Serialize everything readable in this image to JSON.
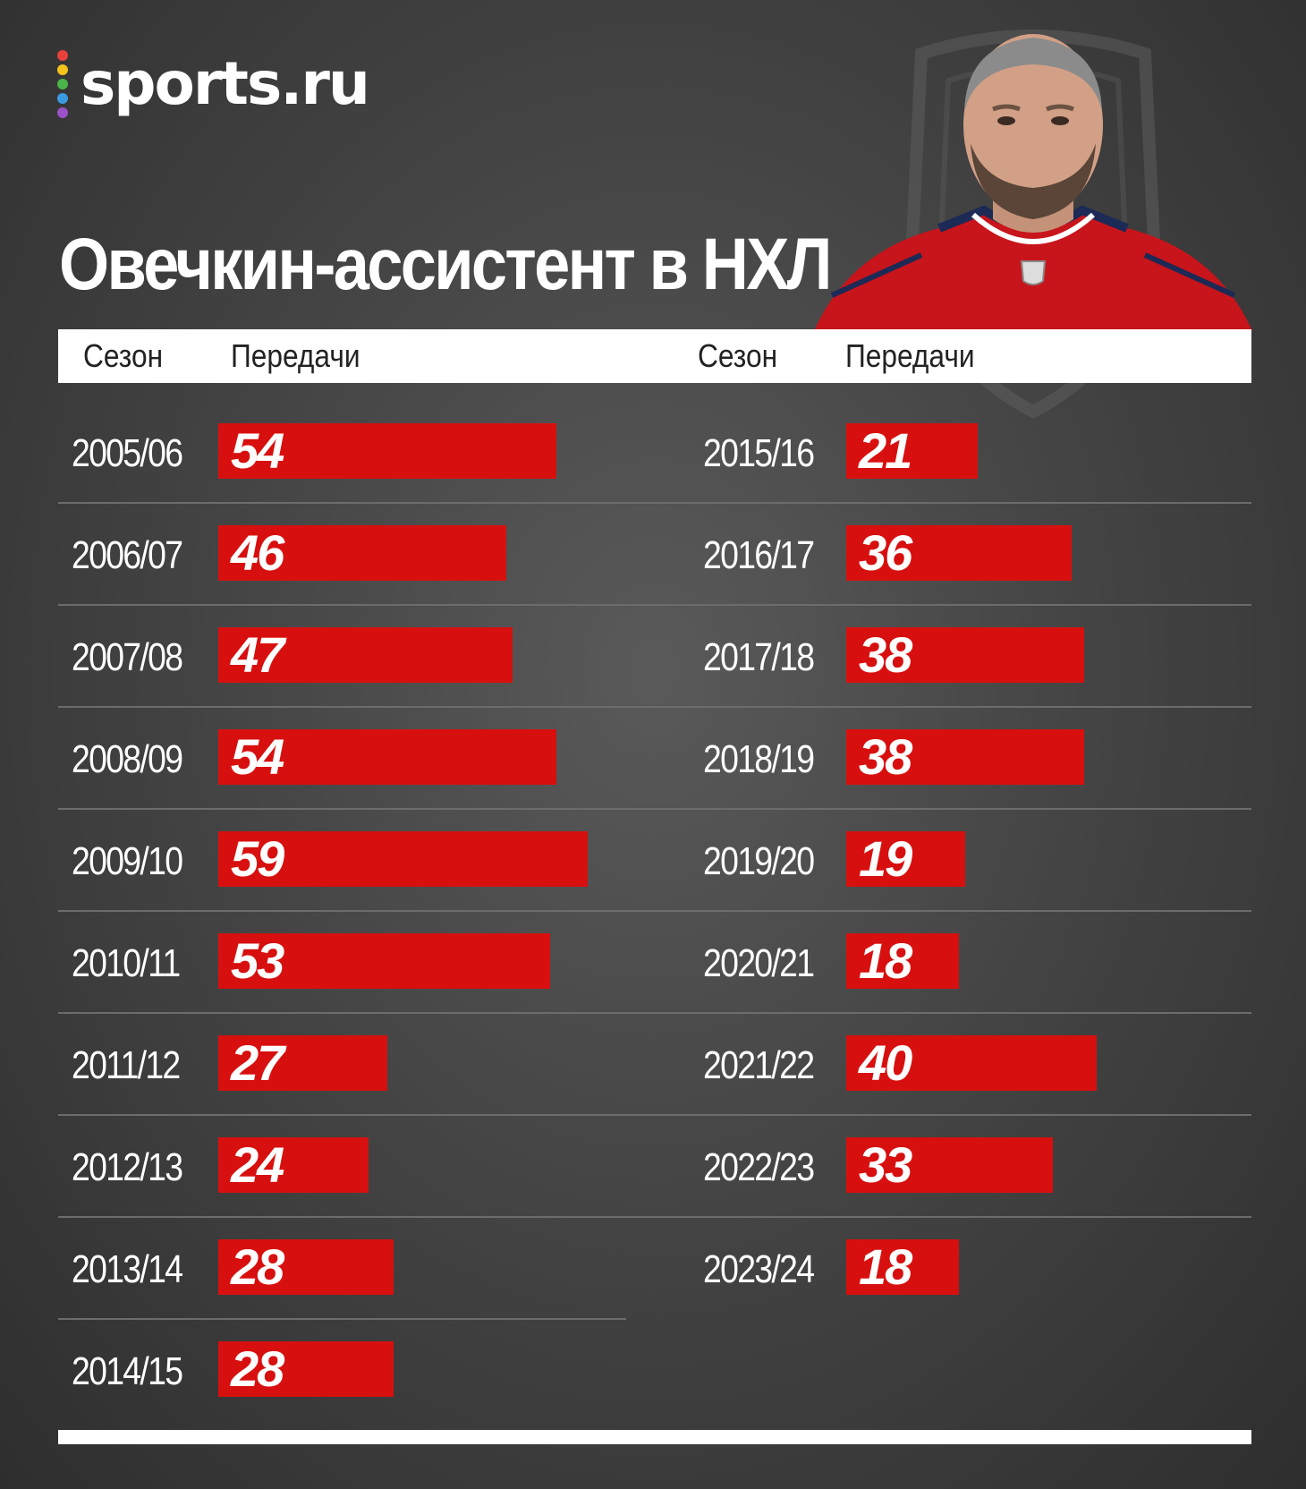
{
  "brand": {
    "name": "sports.ru",
    "dot_colors": [
      "#e8403a",
      "#f3c21b",
      "#4bb54a",
      "#3a9be0",
      "#9b51c8"
    ]
  },
  "title": "Овечкин-ассистент в НХЛ",
  "header": {
    "season_label": "Сезон",
    "assists_label": "Передачи"
  },
  "colors": {
    "bar": "#d7100f",
    "background": "#454545",
    "text": "#ffffff"
  },
  "chart_data": {
    "type": "bar",
    "orientation": "horizontal",
    "title": "Овечкин-ассистент в НХЛ",
    "xlabel": "Передачи",
    "ylabel": "Сезон",
    "columns": [
      {
        "categories": [
          "2005/06",
          "2006/07",
          "2007/08",
          "2008/09",
          "2009/10",
          "2010/11",
          "2011/12",
          "2012/13",
          "2013/14",
          "2014/15"
        ],
        "values": [
          54,
          46,
          47,
          54,
          59,
          53,
          27,
          24,
          28,
          28
        ]
      },
      {
        "categories": [
          "2015/16",
          "2016/17",
          "2017/18",
          "2018/19",
          "2019/20",
          "2020/21",
          "2021/22",
          "2022/23",
          "2023/24"
        ],
        "values": [
          21,
          36,
          38,
          38,
          19,
          18,
          40,
          33,
          18
        ]
      }
    ]
  }
}
